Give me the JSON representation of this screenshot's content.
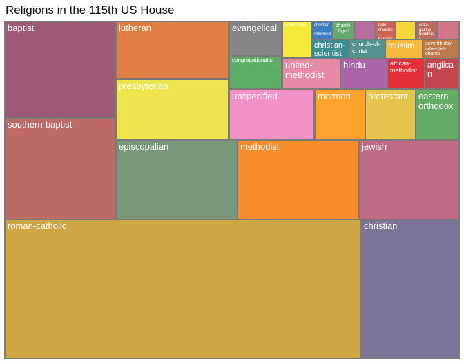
{
  "chart_data": {
    "type": "treemap",
    "title": "Religions in the 115th US House",
    "items": [
      {
        "label": "roman-catholic",
        "color": "#cea644",
        "value": 139
      },
      {
        "label": "christian",
        "color": "#7a7497",
        "value": 33
      },
      {
        "label": "baptist",
        "color": "#9c5a77",
        "value": 33
      },
      {
        "label": "southern-baptist",
        "color": "#bd6b67",
        "value": 29
      },
      {
        "label": "lutheran",
        "color": "#e07f44",
        "value": 20
      },
      {
        "label": "presbyterian",
        "color": "#eee54e",
        "value": 21
      },
      {
        "label": "episcopalian",
        "color": "#78977a",
        "value": 26
      },
      {
        "label": "methodist",
        "color": "#f78c2a",
        "value": 27
      },
      {
        "label": "jewish",
        "color": "#c06b86",
        "value": 21
      },
      {
        "label": "evangelical",
        "color": "#858585",
        "value": 5
      },
      {
        "label": "congregationalist",
        "color": "#5fae68",
        "value": 5
      },
      {
        "label": "unspecified",
        "color": "#f291c6",
        "value": 12
      },
      {
        "label": "mormon",
        "color": "#fda32c",
        "value": 9
      },
      {
        "label": "protestant",
        "color": "#e6c34a",
        "value": 9
      },
      {
        "label": "eastern-orthodox",
        "color": "#62ac66",
        "value": 7
      },
      {
        "label": "pentecostal",
        "color": "#f5ea3a",
        "value": 2
      },
      {
        "label": "christian-reformed",
        "color": "#3f7fc0",
        "value": 1
      },
      {
        "label": "church-of-god",
        "color": "#62a96a",
        "value": 1
      },
      {
        "label": "",
        "color": "#b56e9c",
        "value": 1
      },
      {
        "label": "christian-scientist",
        "color": "#3d8d94",
        "value": 2
      },
      {
        "label": "church-of-christ",
        "color": "#53958e",
        "value": 2
      },
      {
        "label": "indo-shinsho-buddhist",
        "color": "#cc6555",
        "value": 1
      },
      {
        "label": "",
        "color": "#f6d73d",
        "value": 1
      },
      {
        "label": "soka-gakkai-buddhist",
        "color": "#bf6b5c",
        "value": 1
      },
      {
        "label": "",
        "color": "#d07889",
        "value": 1
      },
      {
        "label": "muslim",
        "color": "#f7b93a",
        "value": 2
      },
      {
        "label": "seventh-day-adventist-church",
        "color": "#bd7b4c",
        "value": 2
      },
      {
        "label": "united-methodist",
        "color": "#e88aa4",
        "value": 3
      },
      {
        "label": "hindu",
        "color": "#a965a7",
        "value": 3
      },
      {
        "label": "african-methodist",
        "color": "#e23138",
        "value": 3
      },
      {
        "label": "anglican",
        "color": "#c0464f",
        "value": 2
      }
    ]
  }
}
